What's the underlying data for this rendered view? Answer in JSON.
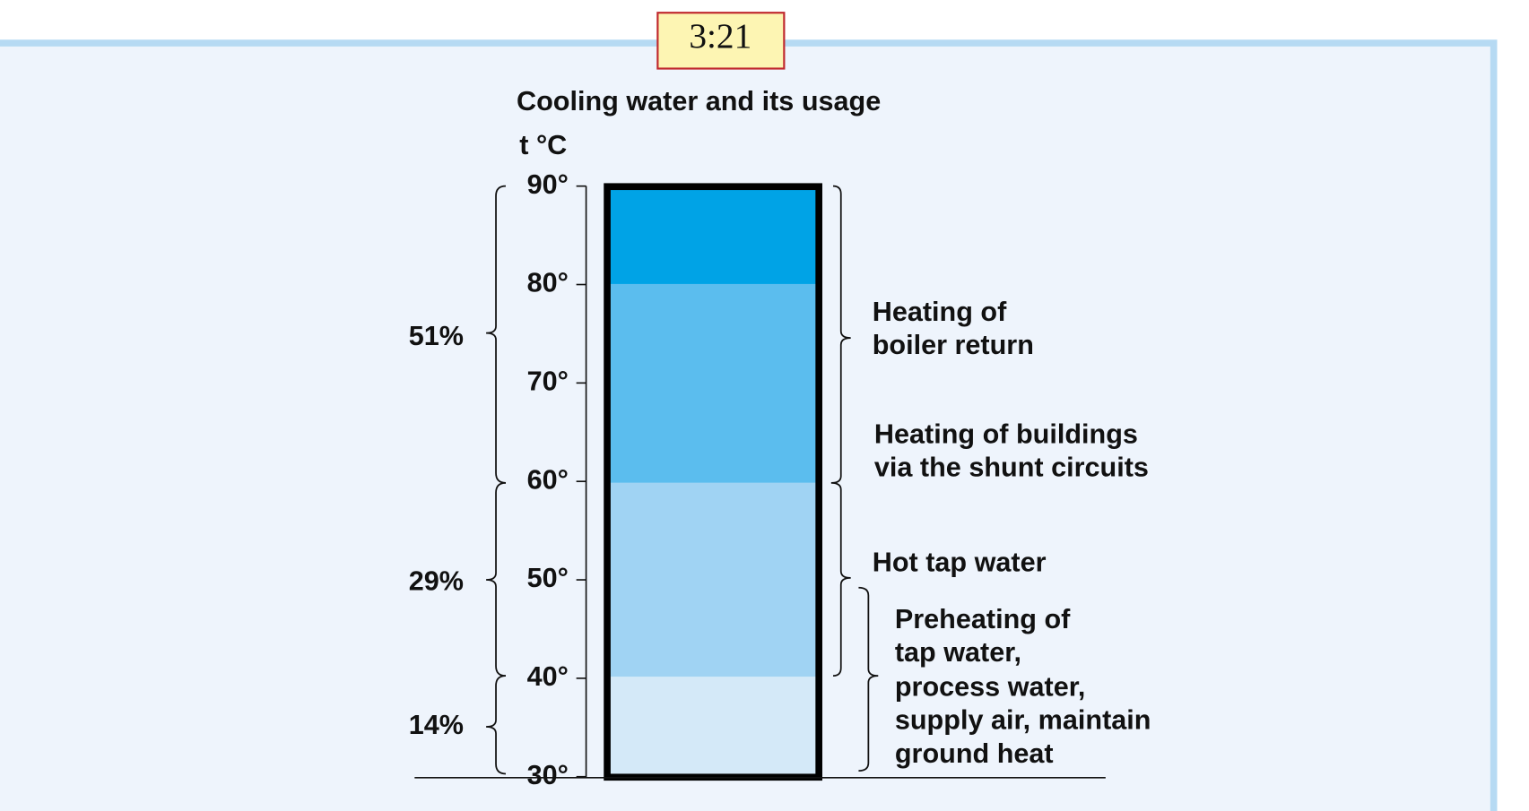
{
  "badge": "3:21",
  "title": "Cooling water and its usage",
  "axis_label": "t °C",
  "ticks": [
    {
      "value": 90,
      "label": "90°"
    },
    {
      "value": 80,
      "label": "80°"
    },
    {
      "value": 70,
      "label": "70°"
    },
    {
      "value": 60,
      "label": "60°"
    },
    {
      "value": 50,
      "label": "50°"
    },
    {
      "value": 40,
      "label": "40°"
    },
    {
      "value": 30,
      "label": "30°"
    }
  ],
  "shares": [
    "51%",
    "29%",
    "14%"
  ],
  "usages": [
    [
      "Heating of",
      "boiler return"
    ],
    [
      "Heating of buildings",
      "via the shunt circuits"
    ],
    [
      "Hot tap water"
    ],
    [
      "Preheating of",
      "tap water,",
      "process water,",
      "supply air, maintain",
      "ground heat"
    ]
  ]
}
